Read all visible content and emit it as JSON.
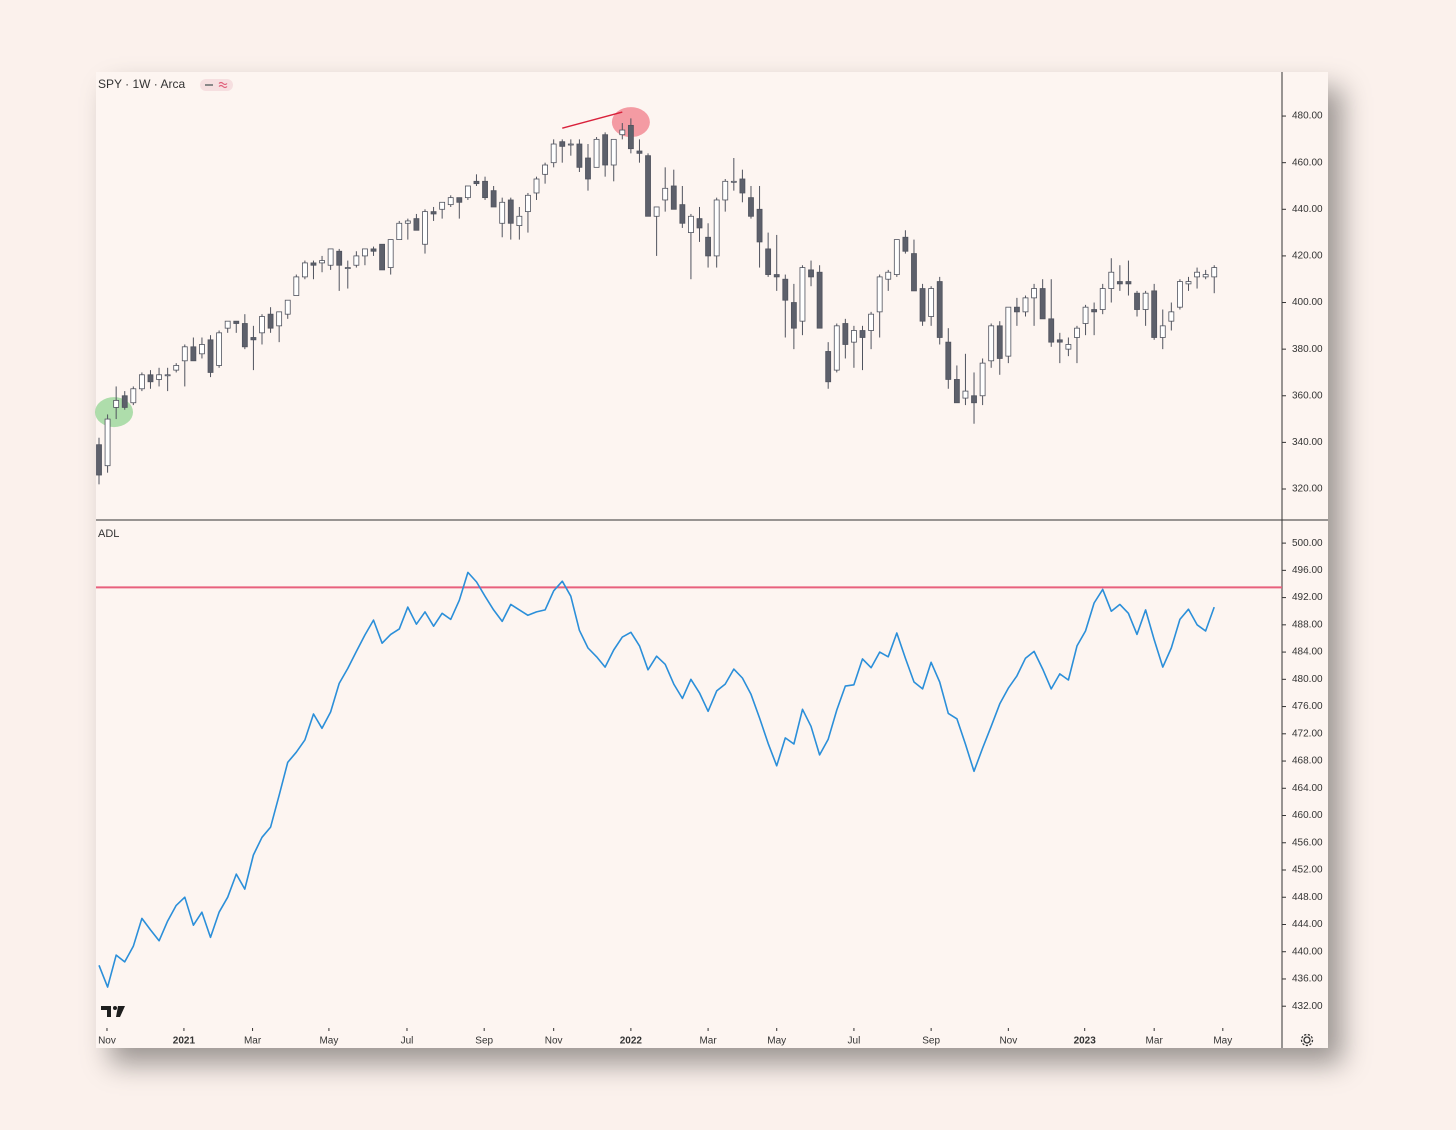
{
  "chart_data": [
    {
      "type": "candlestick",
      "title": "SPY · 1W · Arca",
      "up_color": "#ffffff",
      "down_color": "#5d606b",
      "wick_color": "#50535e",
      "xlim": [
        -0.35,
        137.9
      ],
      "ylim": [
        306.7,
        498.9
      ],
      "yticks": [
        {
          "value": 320,
          "label": "320.00"
        },
        {
          "value": 340,
          "label": "340.00"
        },
        {
          "value": 360,
          "label": "360.00"
        },
        {
          "value": 380,
          "label": "380.00"
        },
        {
          "value": 400,
          "label": "400.00"
        },
        {
          "value": 420,
          "label": "420.00"
        },
        {
          "value": 440,
          "label": "440.00"
        },
        {
          "value": 460,
          "label": "460.00"
        },
        {
          "value": 480,
          "label": "480.00"
        }
      ],
      "open": [
        339,
        330,
        355,
        360,
        357,
        363,
        369,
        367,
        369,
        371,
        375,
        381,
        378,
        384,
        373,
        389,
        392,
        391,
        385,
        387,
        395,
        390,
        395,
        403,
        411,
        417,
        417,
        416,
        422,
        415,
        416,
        420,
        423,
        425,
        415,
        427,
        434,
        436,
        425,
        439,
        440,
        442,
        445,
        445,
        452,
        452,
        448,
        434,
        444,
        433,
        439,
        447,
        455,
        460,
        469,
        468,
        468,
        462,
        458,
        472,
        459,
        472,
        476,
        465,
        463,
        437,
        444,
        450,
        442,
        430,
        436,
        428,
        420,
        444,
        452,
        453,
        445,
        440,
        423,
        412,
        410,
        400,
        392,
        414,
        413,
        379,
        371,
        391,
        383,
        388,
        388,
        396,
        410,
        412,
        428,
        421,
        406,
        394,
        409,
        383,
        367,
        359,
        360,
        360,
        375,
        390,
        377,
        398,
        396,
        402,
        406,
        393,
        384,
        380,
        385,
        391,
        397,
        397,
        406,
        409,
        409,
        404,
        397,
        405,
        385,
        392,
        398,
        408,
        411,
        411,
        411
      ],
      "high": [
        342,
        352,
        364,
        362,
        364,
        370,
        371,
        372,
        372,
        374,
        382,
        385,
        385,
        386,
        388,
        392,
        392,
        395,
        390,
        395,
        398,
        396,
        401,
        412,
        418,
        418,
        420,
        423,
        423,
        418,
        422,
        423,
        424,
        425,
        427,
        435,
        436,
        438,
        440,
        441,
        443,
        446,
        445,
        450,
        455,
        454,
        450,
        445,
        445,
        441,
        447,
        454,
        460,
        470,
        470,
        470,
        470,
        468,
        471,
        473,
        470,
        477,
        479,
        470,
        464,
        441,
        458,
        457,
        450,
        438,
        441,
        434,
        445,
        453,
        462,
        457,
        450,
        450,
        430,
        429,
        412,
        408,
        416,
        418,
        416,
        383,
        391,
        393,
        390,
        390,
        396,
        412,
        414,
        427,
        431,
        427,
        408,
        407,
        411,
        389,
        373,
        378,
        370,
        376,
        391,
        392,
        398,
        402,
        403,
        408,
        410,
        410,
        387,
        385,
        390,
        399,
        400,
        408,
        419,
        416,
        418,
        405,
        405,
        408,
        397,
        400,
        410,
        411,
        415,
        414,
        416
      ],
      "low": [
        322,
        327,
        350,
        354,
        356,
        362,
        363,
        364,
        362,
        370,
        364,
        375,
        376,
        368,
        372,
        387,
        387,
        380,
        371,
        382,
        387,
        383,
        393,
        403,
        410,
        410,
        413,
        414,
        405,
        406,
        415,
        416,
        420,
        414,
        412,
        427,
        427,
        431,
        421,
        435,
        436,
        441,
        436,
        444,
        450,
        444,
        441,
        428,
        427,
        427,
        430,
        444,
        451,
        458,
        460,
        463,
        456,
        448,
        458,
        454,
        452,
        470,
        464,
        460,
        438,
        420,
        439,
        440,
        432,
        410,
        426,
        415,
        415,
        439,
        448,
        443,
        436,
        415,
        411,
        405,
        385,
        380,
        386,
        407,
        389,
        363,
        370,
        376,
        372,
        371,
        380,
        385,
        405,
        411,
        421,
        405,
        390,
        390,
        382,
        363,
        357,
        356,
        348,
        356,
        372,
        369,
        374,
        390,
        394,
        390,
        393,
        381,
        374,
        377,
        374,
        386,
        386,
        395,
        400,
        405,
        403,
        394,
        390,
        384,
        380,
        388,
        397,
        405,
        406,
        410,
        404
      ],
      "close": [
        326,
        350,
        358,
        355,
        363,
        369,
        366,
        369,
        369,
        373,
        381,
        375,
        382,
        370,
        387,
        392,
        391,
        381,
        384,
        394,
        389,
        396,
        401,
        411,
        417,
        416,
        418,
        423,
        416,
        415,
        420,
        423,
        422,
        414,
        427,
        434,
        435,
        431,
        439,
        438,
        443,
        445,
        443,
        450,
        451,
        445,
        441,
        443,
        434,
        437,
        446,
        453,
        459,
        468,
        467,
        468,
        458,
        453,
        470,
        459,
        470,
        474,
        466,
        464,
        437,
        441,
        449,
        440,
        434,
        437,
        432,
        420,
        444,
        452,
        452,
        447,
        437,
        426,
        412,
        411,
        401,
        389,
        415,
        411,
        389,
        366,
        390,
        382,
        388,
        385,
        395,
        411,
        413,
        427,
        422,
        405,
        392,
        406,
        385,
        367,
        357,
        362,
        357,
        374,
        390,
        376,
        398,
        396,
        402,
        406,
        393,
        383,
        383,
        382,
        389,
        398,
        396,
        406,
        413,
        408,
        408,
        397,
        404,
        385,
        390,
        396,
        409,
        409,
        413,
        412,
        415
      ],
      "annotations": [
        {
          "shape": "ellipse",
          "x": 1.75,
          "y": 353,
          "color": "#93d493"
        },
        {
          "shape": "ellipse",
          "x": 62,
          "y": 477.4,
          "color": "#f07c88"
        },
        {
          "shape": "line",
          "x": [
            54,
            61
          ],
          "y": [
            474.8,
            481.7
          ],
          "color": "#d9213b"
        }
      ]
    },
    {
      "type": "line",
      "title": "ADL",
      "color": "#2b8fd9",
      "xlim": [
        -0.35,
        137.9
      ],
      "ylim": [
        428.8,
        503.1
      ],
      "yticks": [
        {
          "value": 432,
          "label": "432.00"
        },
        {
          "value": 436,
          "label": "436.00"
        },
        {
          "value": 440,
          "label": "440.00"
        },
        {
          "value": 444,
          "label": "444.00"
        },
        {
          "value": 448,
          "label": "448.00"
        },
        {
          "value": 452,
          "label": "452.00"
        },
        {
          "value": 456,
          "label": "456.00"
        },
        {
          "value": 460,
          "label": "460.00"
        },
        {
          "value": 464,
          "label": "464.00"
        },
        {
          "value": 468,
          "label": "468.00"
        },
        {
          "value": 472,
          "label": "472.00"
        },
        {
          "value": 476,
          "label": "476.00"
        },
        {
          "value": 480,
          "label": "480.00"
        },
        {
          "value": 484,
          "label": "484.00"
        },
        {
          "value": 488,
          "label": "488.00"
        },
        {
          "value": 492,
          "label": "492.00"
        },
        {
          "value": 496,
          "label": "496.00"
        },
        {
          "value": 500,
          "label": "500.00"
        }
      ],
      "xticks": [
        {
          "value": 0.93,
          "label": "Nov"
        },
        {
          "value": 9.9,
          "label": "2021"
        },
        {
          "value": 17.9,
          "label": "Mar"
        },
        {
          "value": 26.8,
          "label": "May"
        },
        {
          "value": 35.9,
          "label": "Jul"
        },
        {
          "value": 44.9,
          "label": "Sep"
        },
        {
          "value": 53.0,
          "label": "Nov"
        },
        {
          "value": 62.0,
          "label": "2022"
        },
        {
          "value": 71.0,
          "label": "Mar"
        },
        {
          "value": 79.0,
          "label": "May"
        },
        {
          "value": 88.0,
          "label": "Jul"
        },
        {
          "value": 97.0,
          "label": "Sep"
        },
        {
          "value": 106.0,
          "label": "Nov"
        },
        {
          "value": 114.9,
          "label": "2023"
        },
        {
          "value": 123.0,
          "label": "Mar"
        },
        {
          "value": 131.0,
          "label": "May"
        }
      ],
      "values": [
        438.0,
        434.8,
        439.5,
        438.5,
        440.8,
        444.9,
        443.2,
        441.6,
        444.5,
        446.8,
        448.0,
        443.9,
        445.8,
        442.1,
        445.8,
        448.0,
        451.4,
        449.2,
        454.2,
        456.8,
        458.3,
        463.0,
        467.8,
        469.3,
        471.1,
        474.9,
        472.8,
        475.2,
        479.4,
        481.6,
        484.1,
        486.5,
        488.7,
        485.3,
        486.6,
        487.4,
        490.6,
        488.1,
        489.9,
        487.8,
        489.7,
        488.8,
        491.6,
        495.7,
        494.3,
        492.2,
        490.2,
        488.5,
        491.0,
        490.2,
        489.4,
        489.9,
        490.2,
        493.0,
        494.4,
        492.2,
        487.2,
        484.6,
        483.3,
        481.8,
        484.3,
        486.2,
        486.9,
        484.9,
        481.4,
        483.4,
        482.2,
        479.3,
        477.2,
        480.0,
        478.0,
        475.3,
        478.3,
        479.3,
        481.5,
        480.2,
        477.8,
        474.3,
        470.6,
        467.3,
        471.4,
        470.5,
        475.6,
        473.1,
        468.9,
        471.2,
        475.5,
        479.0,
        479.2,
        483.0,
        481.7,
        484.0,
        483.3,
        486.8,
        483.1,
        479.6,
        478.6,
        482.5,
        479.6,
        475.0,
        474.2,
        470.5,
        466.5,
        469.9,
        473.1,
        476.4,
        478.7,
        480.5,
        483.1,
        484.1,
        481.5,
        478.6,
        480.8,
        479.9,
        484.9,
        487.1,
        491.2,
        493.2,
        490.0,
        491.0,
        489.7,
        486.6,
        490.2,
        485.8,
        481.8,
        484.6,
        488.8,
        490.3,
        488.0,
        487.1,
        490.6
      ],
      "annotations": [
        {
          "shape": "hline",
          "y": 493.5,
          "color": "#e8607d"
        }
      ]
    }
  ]
}
